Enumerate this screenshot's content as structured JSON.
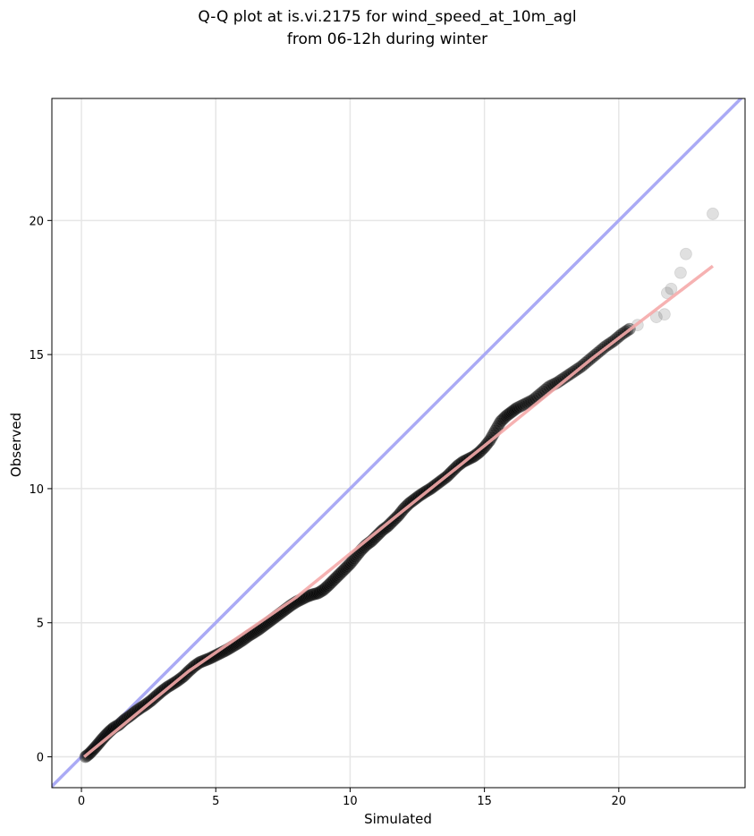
{
  "chart_data": {
    "type": "scatter",
    "title": "Q-Q plot at is.vi.2175 for wind_speed_at_10m_agl",
    "subtitle": "from 06-12h during winter",
    "xlabel": "Simulated",
    "ylabel": "Observed",
    "xlim": [
      -1.1,
      24.7
    ],
    "ylim": [
      -1.15,
      24.55
    ],
    "xticks": [
      0,
      5,
      10,
      15,
      20
    ],
    "yticks": [
      0,
      5,
      10,
      15,
      20
    ],
    "grid": true,
    "colors": {
      "points": "#000000",
      "identity_line": "#aaaaf5",
      "fit_line": "#f5aaaa"
    },
    "series": [
      {
        "kind": "scatter",
        "points": [
          [
            0.15,
            0.0
          ],
          [
            0.3,
            0.12
          ],
          [
            0.45,
            0.28
          ],
          [
            0.6,
            0.45
          ],
          [
            0.75,
            0.63
          ],
          [
            0.9,
            0.8
          ],
          [
            1.05,
            0.95
          ],
          [
            1.2,
            1.08
          ],
          [
            1.4,
            1.2
          ],
          [
            1.6,
            1.38
          ],
          [
            1.8,
            1.52
          ],
          [
            2.0,
            1.68
          ],
          [
            2.2,
            1.82
          ],
          [
            2.4,
            1.95
          ],
          [
            2.6,
            2.1
          ],
          [
            2.8,
            2.28
          ],
          [
            3.0,
            2.45
          ],
          [
            3.2,
            2.6
          ],
          [
            3.4,
            2.72
          ],
          [
            3.6,
            2.85
          ],
          [
            3.8,
            3.0
          ],
          [
            4.0,
            3.2
          ],
          [
            4.2,
            3.38
          ],
          [
            4.4,
            3.52
          ],
          [
            4.6,
            3.6
          ],
          [
            4.8,
            3.68
          ],
          [
            5.0,
            3.78
          ],
          [
            5.2,
            3.88
          ],
          [
            5.4,
            3.98
          ],
          [
            5.6,
            4.1
          ],
          [
            5.8,
            4.22
          ],
          [
            6.0,
            4.35
          ],
          [
            6.2,
            4.5
          ],
          [
            6.4,
            4.62
          ],
          [
            6.6,
            4.75
          ],
          [
            6.8,
            4.9
          ],
          [
            7.0,
            5.05
          ],
          [
            7.2,
            5.2
          ],
          [
            7.4,
            5.35
          ],
          [
            7.6,
            5.5
          ],
          [
            7.8,
            5.65
          ],
          [
            8.0,
            5.78
          ],
          [
            8.2,
            5.88
          ],
          [
            8.4,
            5.98
          ],
          [
            8.6,
            6.05
          ],
          [
            8.8,
            6.1
          ],
          [
            9.0,
            6.22
          ],
          [
            9.2,
            6.4
          ],
          [
            9.4,
            6.6
          ],
          [
            9.6,
            6.8
          ],
          [
            9.8,
            7.0
          ],
          [
            10.0,
            7.2
          ],
          [
            10.2,
            7.45
          ],
          [
            10.4,
            7.7
          ],
          [
            10.6,
            7.9
          ],
          [
            10.8,
            8.05
          ],
          [
            11.0,
            8.25
          ],
          [
            11.2,
            8.45
          ],
          [
            11.4,
            8.6
          ],
          [
            11.6,
            8.8
          ],
          [
            11.8,
            9.0
          ],
          [
            12.0,
            9.25
          ],
          [
            12.2,
            9.45
          ],
          [
            12.4,
            9.6
          ],
          [
            12.6,
            9.75
          ],
          [
            12.8,
            9.88
          ],
          [
            13.0,
            10.0
          ],
          [
            13.2,
            10.15
          ],
          [
            13.4,
            10.3
          ],
          [
            13.6,
            10.45
          ],
          [
            13.8,
            10.65
          ],
          [
            14.0,
            10.85
          ],
          [
            14.2,
            11.0
          ],
          [
            14.4,
            11.1
          ],
          [
            14.6,
            11.2
          ],
          [
            14.8,
            11.35
          ],
          [
            15.0,
            11.55
          ],
          [
            15.2,
            11.8
          ],
          [
            15.4,
            12.15
          ],
          [
            15.6,
            12.5
          ],
          [
            15.8,
            12.7
          ],
          [
            16.0,
            12.85
          ],
          [
            16.2,
            13.0
          ],
          [
            16.5,
            13.15
          ],
          [
            16.8,
            13.3
          ],
          [
            17.1,
            13.55
          ],
          [
            17.4,
            13.8
          ],
          [
            17.7,
            13.95
          ],
          [
            18.0,
            14.15
          ],
          [
            18.3,
            14.35
          ],
          [
            18.6,
            14.55
          ],
          [
            18.9,
            14.8
          ],
          [
            19.2,
            15.05
          ],
          [
            19.5,
            15.3
          ],
          [
            19.8,
            15.5
          ],
          [
            20.1,
            15.75
          ],
          [
            20.4,
            15.95
          ],
          [
            20.7,
            16.1
          ],
          [
            21.4,
            16.4
          ],
          [
            21.7,
            16.5
          ],
          [
            21.8,
            17.3
          ],
          [
            21.95,
            17.45
          ],
          [
            22.3,
            18.05
          ],
          [
            22.5,
            18.75
          ],
          [
            23.5,
            20.25
          ]
        ]
      },
      {
        "kind": "line",
        "name": "identity",
        "points": [
          [
            -1.1,
            -1.1
          ],
          [
            24.7,
            24.7
          ]
        ]
      },
      {
        "kind": "line",
        "name": "fit",
        "points": [
          [
            0.1,
            0.0
          ],
          [
            4.0,
            3.2
          ],
          [
            8.0,
            5.95
          ],
          [
            12.0,
            9.2
          ],
          [
            15.0,
            11.6
          ],
          [
            19.0,
            14.85
          ],
          [
            23.5,
            18.3
          ]
        ]
      }
    ]
  }
}
